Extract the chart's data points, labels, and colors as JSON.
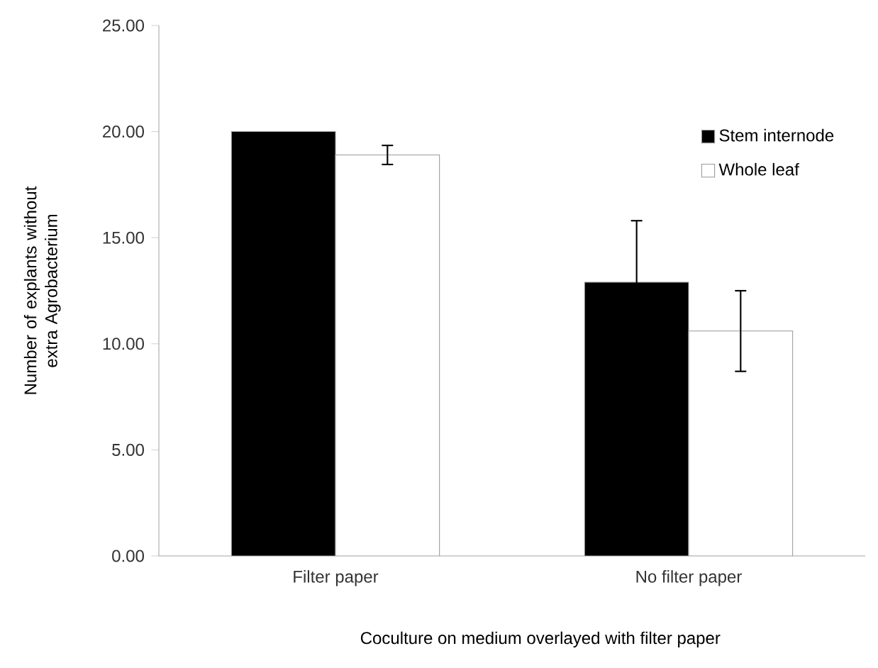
{
  "chart_data": {
    "type": "bar",
    "xlabel": "Coculture on medium overlayed with filter paper",
    "ylabel": "Number of explants without extra Agrobacterium",
    "categories": [
      "Filter paper",
      "No filter paper"
    ],
    "series": [
      {
        "name": "Stem internode",
        "color": "#000000",
        "values": [
          20.0,
          12.9
        ],
        "errors": [
          null,
          2.9
        ]
      },
      {
        "name": "Whole leaf",
        "color": "#ffffff",
        "values": [
          18.9,
          10.6
        ],
        "errors": [
          0.45,
          1.9
        ]
      }
    ],
    "ylim": [
      0,
      25
    ],
    "yticks": [
      {
        "value": 0,
        "label": "0.00"
      },
      {
        "value": 5,
        "label": "5.00"
      },
      {
        "value": 10,
        "label": "10.00"
      },
      {
        "value": 15,
        "label": "15.00"
      },
      {
        "value": 20,
        "label": "20.00"
      },
      {
        "value": 25,
        "label": "25.00"
      }
    ],
    "legend": "top right",
    "grid": false
  }
}
